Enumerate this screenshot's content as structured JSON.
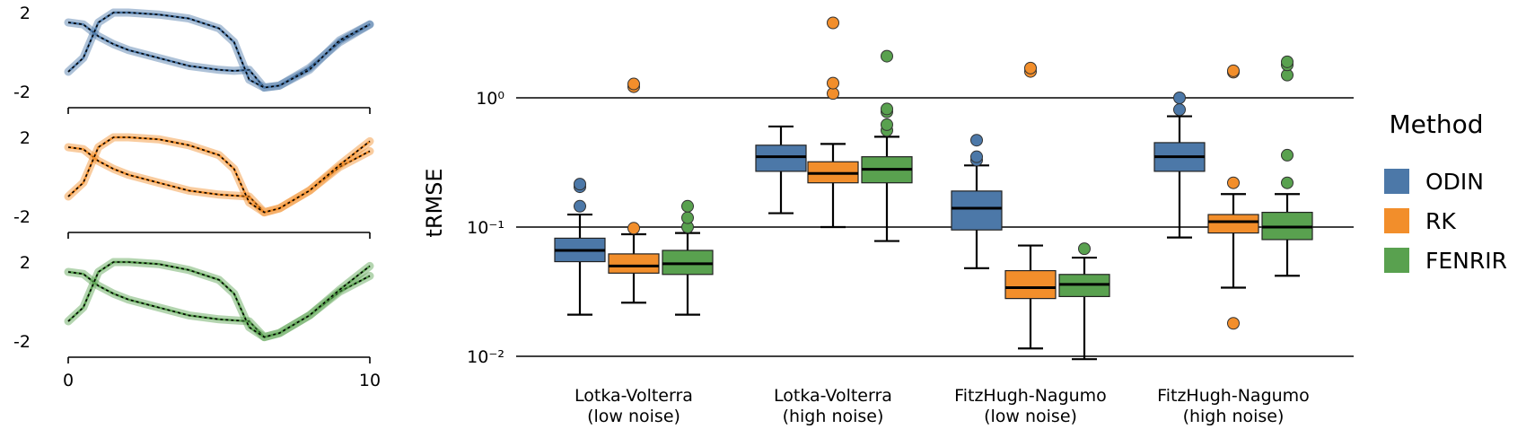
{
  "chart_data": [
    {
      "type": "line",
      "panel": "top",
      "color": "#4c78a8",
      "xlim": [
        0,
        10
      ],
      "ylim": [
        -2,
        2
      ],
      "x_ticks": [
        "0",
        "10"
      ],
      "y_ticks": [
        "2",
        "-2"
      ],
      "series": [
        {
          "x": [
            0,
            0.5,
            1,
            1.5,
            2,
            3,
            4,
            5,
            5.5,
            6,
            6.5,
            7,
            8,
            9,
            10
          ],
          "values": [
            1.5,
            1.4,
            0.8,
            0.4,
            0.1,
            -0.3,
            -0.7,
            -0.9,
            -0.95,
            -0.9,
            -1.8,
            -1.7,
            -0.8,
            0.5,
            1.4
          ]
        },
        {
          "x": [
            0,
            0.5,
            1,
            1.5,
            2,
            3,
            4,
            5,
            5.5,
            6,
            6.5,
            7,
            8,
            9,
            10
          ],
          "values": [
            -1.0,
            -0.3,
            1.5,
            2.0,
            2.0,
            1.9,
            1.7,
            1.2,
            0.5,
            -1.4,
            -1.8,
            -1.7,
            -0.9,
            0.6,
            1.4
          ]
        }
      ]
    },
    {
      "type": "line",
      "panel": "middle",
      "color": "#f28e2b",
      "xlim": [
        0,
        10
      ],
      "ylim": [
        -2,
        2
      ],
      "x_ticks": [
        "0",
        "10"
      ],
      "y_ticks": [
        "2",
        "-2"
      ],
      "series": [
        {
          "x": [
            0,
            0.5,
            1,
            1.5,
            2,
            3,
            4,
            5,
            5.5,
            6,
            6.5,
            7,
            8,
            9,
            10
          ],
          "values": [
            1.5,
            1.4,
            0.8,
            0.4,
            0.1,
            -0.3,
            -0.7,
            -0.9,
            -0.95,
            -1.0,
            -1.8,
            -1.6,
            -0.7,
            0.5,
            1.3
          ]
        },
        {
          "x": [
            0,
            0.5,
            1,
            1.5,
            2,
            3,
            4,
            5,
            5.5,
            6,
            6.5,
            7,
            8,
            9,
            10
          ],
          "values": [
            -1.0,
            -0.3,
            1.5,
            2.0,
            2.0,
            1.9,
            1.6,
            1.1,
            0.4,
            -1.3,
            -1.8,
            -1.6,
            -0.7,
            0.6,
            1.8
          ]
        }
      ]
    },
    {
      "type": "line",
      "panel": "bottom",
      "color": "#59a14f",
      "xlim": [
        0,
        10
      ],
      "ylim": [
        -2,
        2
      ],
      "x_ticks": [
        "0",
        "10"
      ],
      "y_ticks": [
        "2",
        "-2"
      ],
      "series": [
        {
          "x": [
            0,
            0.5,
            1,
            1.5,
            2,
            3,
            4,
            5,
            5.5,
            6,
            6.5,
            7,
            8,
            9,
            10
          ],
          "values": [
            1.5,
            1.4,
            0.8,
            0.4,
            0.1,
            -0.3,
            -0.7,
            -0.9,
            -0.95,
            -1.0,
            -1.8,
            -1.6,
            -0.7,
            0.5,
            1.3
          ]
        },
        {
          "x": [
            0,
            0.5,
            1,
            1.5,
            2,
            3,
            4,
            5,
            5.5,
            6,
            6.5,
            7,
            8,
            9,
            10
          ],
          "values": [
            -1.0,
            -0.3,
            1.5,
            2.0,
            2.0,
            1.9,
            1.6,
            1.1,
            0.4,
            -1.3,
            -1.8,
            -1.6,
            -0.7,
            0.6,
            1.8
          ]
        }
      ]
    },
    {
      "type": "box",
      "ylabel": "tRMSE",
      "yscale": "log",
      "ylim": [
        0.01,
        5
      ],
      "y_ticks": [
        {
          "value": 1,
          "label": "10⁰"
        },
        {
          "value": 0.1,
          "label": "10⁻¹"
        },
        {
          "value": 0.01,
          "label": "10⁻²"
        }
      ],
      "grid": "horizontal at major ticks",
      "categories": [
        [
          "Lotka-Volterra",
          "(low noise)"
        ],
        [
          "Lotka-Volterra",
          "(high noise)"
        ],
        [
          "FitzHugh-Nagumo",
          "(low noise)"
        ],
        [
          "FitzHugh-Nagumo",
          "(high noise)"
        ]
      ],
      "legend": {
        "title": "Method",
        "placement": "right"
      },
      "series": [
        {
          "name": "ODIN",
          "color": "#4c78a8",
          "boxes": [
            {
              "whislo": 0.021,
              "q1": 0.054,
              "med": 0.066,
              "q3": 0.082,
              "whishi": 0.125,
              "fliers": [
                0.145,
                0.205,
                0.215
              ]
            },
            {
              "whislo": 0.128,
              "q1": 0.27,
              "med": 0.35,
              "q3": 0.43,
              "whishi": 0.6,
              "fliers": []
            },
            {
              "whislo": 0.048,
              "q1": 0.095,
              "med": 0.14,
              "q3": 0.19,
              "whishi": 0.3,
              "fliers": [
                0.33,
                0.35,
                0.47
              ]
            },
            {
              "whislo": 0.083,
              "q1": 0.27,
              "med": 0.35,
              "q3": 0.45,
              "whishi": 0.72,
              "fliers": [
                0.81,
                1.0
              ]
            }
          ]
        },
        {
          "name": "RK",
          "color": "#f28e2b",
          "boxes": [
            {
              "whislo": 0.026,
              "q1": 0.044,
              "med": 0.05,
              "q3": 0.062,
              "whishi": 0.088,
              "fliers": [
                0.098,
                1.22,
                1.28
              ]
            },
            {
              "whislo": 0.1,
              "q1": 0.22,
              "med": 0.26,
              "q3": 0.32,
              "whishi": 0.44,
              "fliers": [
                1.08,
                1.3,
                3.8
              ]
            },
            {
              "whislo": 0.0115,
              "q1": 0.028,
              "med": 0.034,
              "q3": 0.046,
              "whishi": 0.072,
              "fliers": [
                1.6,
                1.7
              ]
            },
            {
              "whislo": 0.034,
              "q1": 0.09,
              "med": 0.11,
              "q3": 0.125,
              "whishi": 0.18,
              "fliers": [
                0.018,
                0.22,
                1.58,
                1.62
              ]
            }
          ]
        },
        {
          "name": "FENRIR",
          "color": "#59a14f",
          "boxes": [
            {
              "whislo": 0.021,
              "q1": 0.043,
              "med": 0.052,
              "q3": 0.066,
              "whishi": 0.09,
              "fliers": [
                0.1,
                0.118,
                0.145
              ]
            },
            {
              "whislo": 0.078,
              "q1": 0.22,
              "med": 0.28,
              "q3": 0.35,
              "whishi": 0.5,
              "fliers": [
                0.56,
                0.62,
                0.78,
                0.82,
                2.1
              ]
            },
            {
              "whislo": 0.0095,
              "q1": 0.029,
              "med": 0.036,
              "q3": 0.043,
              "whishi": 0.058,
              "fliers": [
                0.068
              ]
            },
            {
              "whislo": 0.042,
              "q1": 0.08,
              "med": 0.1,
              "q3": 0.13,
              "whishi": 0.18,
              "fliers": [
                0.22,
                0.36,
                1.5,
                1.8,
                1.9
              ]
            }
          ]
        }
      ]
    }
  ]
}
